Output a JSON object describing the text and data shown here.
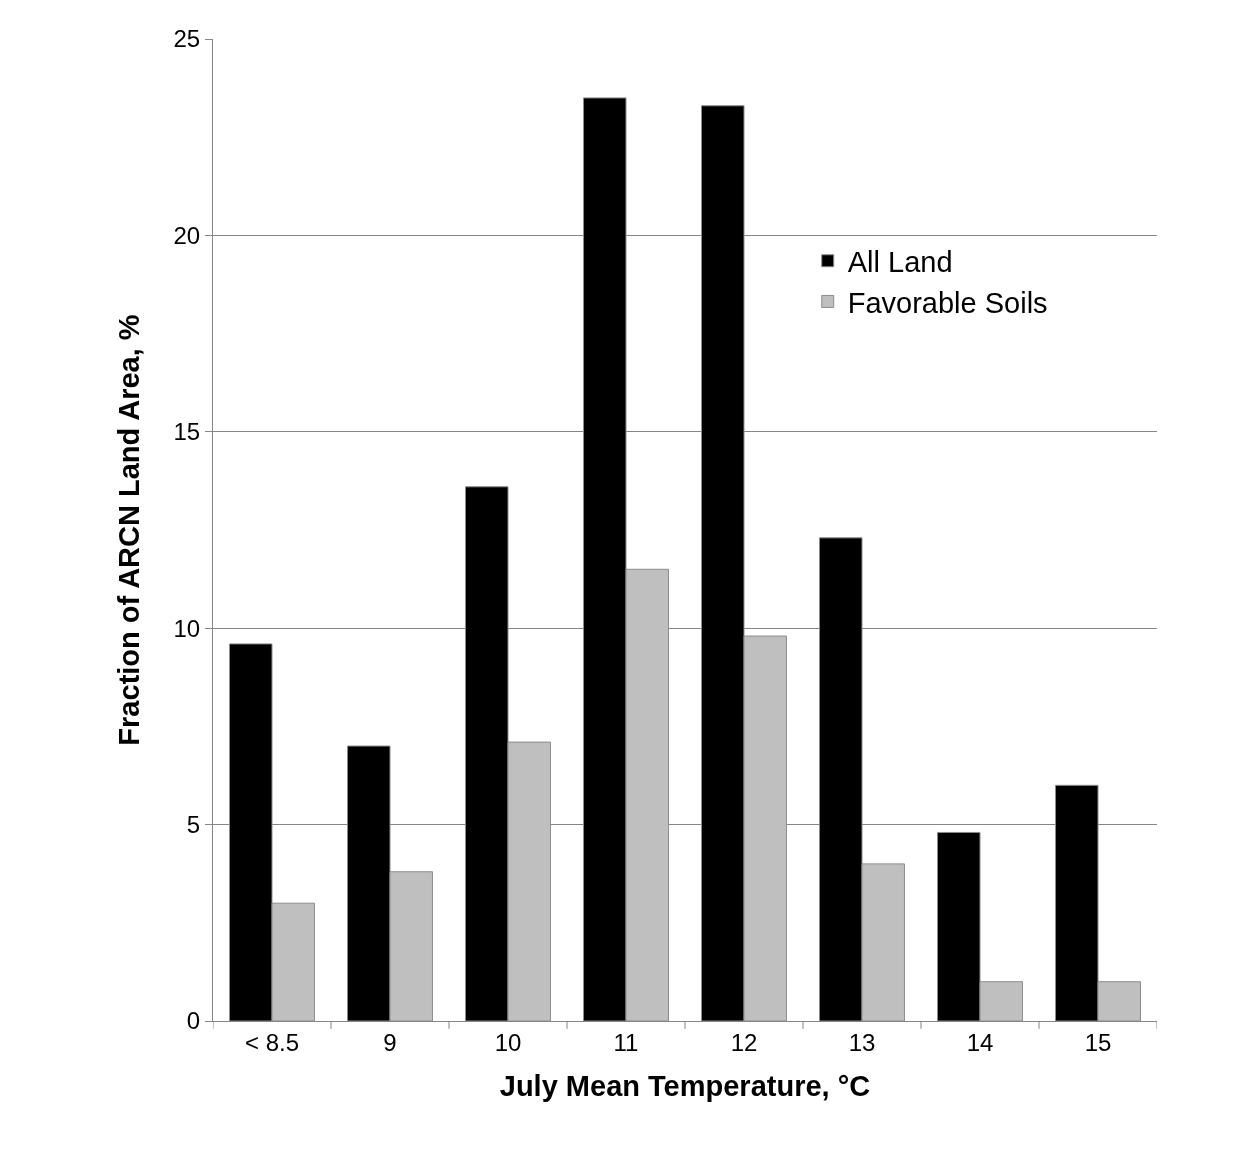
{
  "chart_data": {
    "type": "bar",
    "xlabel": "July Mean Temperature, °C",
    "ylabel": "Fraction of ARCN Land Area, %",
    "categories": [
      "< 8.5",
      "9",
      "10",
      "11",
      "12",
      "13",
      "14",
      "15"
    ],
    "series": [
      {
        "name": "All Land",
        "color": "#000000",
        "values": [
          9.6,
          7.0,
          13.6,
          23.5,
          23.3,
          12.3,
          4.8,
          6.0
        ]
      },
      {
        "name": "Favorable Soils",
        "color": "#bfbfbf",
        "values": [
          3.0,
          3.8,
          7.1,
          11.5,
          9.8,
          4.0,
          1.0,
          1.0
        ]
      }
    ],
    "ylim": [
      0,
      25
    ],
    "yticks": [
      0,
      5,
      10,
      15,
      20,
      25
    ],
    "grid": "y",
    "legend": "top right"
  }
}
